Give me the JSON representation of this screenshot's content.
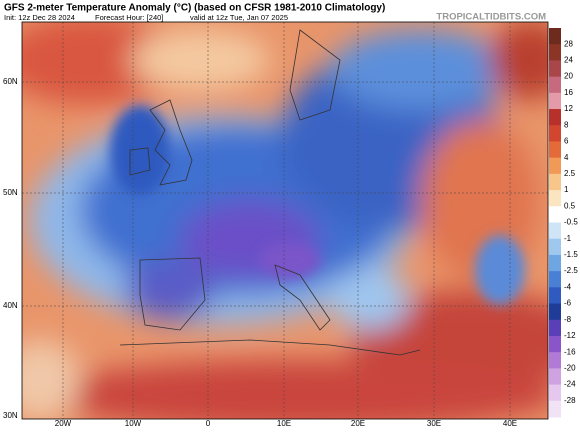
{
  "header": {
    "title": "GFS 2-meter Temperature Anomaly (°C) (based on CFSR 1981-2010 Climatology)",
    "init": "Init: 12z Dec 28 2024",
    "forecast_hour": "Forecast Hour: [240]",
    "valid": "valid at 12z Tue, Jan 07 2025",
    "site": "TROPICALTIDBITS.COM"
  },
  "map": {
    "lat_labels": [
      "60N",
      "50N",
      "40N",
      "30N"
    ],
    "lon_labels": [
      "20W",
      "10W",
      "0",
      "10E",
      "20E",
      "30E",
      "40E"
    ]
  },
  "colorbar": {
    "labels": [
      28,
      24,
      20,
      16,
      12,
      8,
      6,
      4,
      2.5,
      1,
      0.5,
      -0.5,
      -1,
      -1.5,
      -2.5,
      -4,
      -6,
      -8,
      -12,
      -16,
      -20,
      -24,
      -28
    ]
  }
}
